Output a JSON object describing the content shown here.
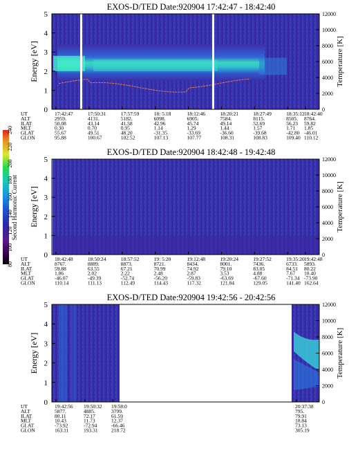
{
  "chart_data": [
    {
      "type": "heatmap",
      "title": "EXOS-D/TED   Date:920904   17:42:47 - 18:42:40",
      "ylabel": "Energy [eV]",
      "ylabel_right": "Temperature [K]",
      "yticks": [
        "0",
        "1",
        "2",
        "3",
        "4",
        "5"
      ],
      "yticks_right": [
        "0",
        "2000",
        "4000",
        "6000",
        "8000",
        "10000",
        "12000"
      ],
      "ylim": [
        0,
        5
      ],
      "ylim_right": [
        0,
        12000
      ],
      "row_labels": [
        "UT",
        "ALT",
        "ILAT",
        "MLT",
        "GLAT",
        "GLON"
      ],
      "columns": [
        [
          "17:42:47",
          "2959.",
          "50.08",
          "0.30",
          "55.67",
          "95.88"
        ],
        [
          "17:50:31",
          "4131.",
          "43.14",
          "0.70",
          "49.51",
          "100.67"
        ],
        [
          "17:57:59",
          "5182.",
          "41.58",
          "0.95",
          "48.20",
          "102.52"
        ],
        [
          "18: 5:18",
          "6098.",
          "42.96",
          "1.14",
          "-31.35",
          "107.13"
        ],
        [
          "18:12:46",
          "6905.",
          "45.74",
          "1.29",
          "-33.69",
          "107.77"
        ],
        [
          "18:20:21",
          "7584.",
          "49.14",
          "1.44",
          "-36.60",
          "108.31"
        ],
        [
          "18:27:49",
          "8115.",
          "52.69",
          "1.57",
          "-39.68",
          "108.83"
        ],
        [
          "18:35:12",
          "8505.",
          "56.23",
          "1.71",
          "-42.80",
          "109.40"
        ],
        [
          "18:42:40",
          "8764.",
          "59.82",
          "1.85",
          "-46.01",
          "110.12"
        ]
      ]
    },
    {
      "type": "heatmap",
      "title": "EXOS-D/TED   Date:920904   18:42:48 - 19:42:48",
      "ylabel": "Energy [eV]",
      "ylabel_right": "Temperature [K]",
      "yticks": [
        "0",
        "1",
        "2",
        "3",
        "4",
        "5"
      ],
      "yticks_right": [
        "0",
        "2000",
        "4000",
        "6000",
        "8000",
        "10000",
        "12000"
      ],
      "ylim": [
        0,
        5
      ],
      "ylim_right": [
        0,
        12000
      ],
      "row_labels": [
        "UT",
        "ALT",
        "ILAT",
        "MLT",
        "GLAT",
        "GLON"
      ],
      "columns": [
        [
          "18:42:48",
          "8767.",
          "59.88",
          "1.86",
          "-46.07",
          "110.14"
        ],
        [
          "18:50:24",
          "8889.",
          "63.55",
          "2.02",
          "-49.39",
          "111.13"
        ],
        [
          "18:57:52",
          "8873.",
          "67.21",
          "2.22",
          "-52.74",
          "112.49"
        ],
        [
          "19: 5:20",
          "8721.",
          "70.99",
          "2.48",
          "-56.20",
          "114.43"
        ],
        [
          "19:12:48",
          "8434.",
          "74.92",
          "2.87",
          "-59.83",
          "117.32"
        ],
        [
          "19:20:24",
          "8001.",
          "79.10",
          "3.53",
          "-63.69",
          "121.84"
        ],
        [
          "19:27:52",
          "7436.",
          "83.05",
          "4.88",
          "-67.60",
          "129.05"
        ],
        [
          "19:35:20",
          "6733.",
          "84.51",
          "7.67",
          "-71.34",
          "141.40"
        ],
        [
          "19:42:48",
          "5893.",
          "80.22",
          "10.40",
          "-73.90",
          "162.64"
        ]
      ]
    },
    {
      "type": "heatmap",
      "title": "EXOS-D/TED   Date:920904   19:42:56 - 20:42:56",
      "ylabel": "Energy [eV]",
      "ylabel_right": "Temperature [K]",
      "yticks": [
        "0",
        "1",
        "2",
        "3",
        "4",
        "5"
      ],
      "yticks_right": [
        "0",
        "2000",
        "4000",
        "6000",
        "8000",
        "10000",
        "12000"
      ],
      "ylim": [
        0,
        5
      ],
      "ylim_right": [
        0,
        12000
      ],
      "row_labels": [
        "UT",
        "ALT",
        "ILAT",
        "MLT",
        "GLAT",
        "GLON"
      ],
      "columns": [
        [
          "19:42:56",
          "5877.",
          "80.11",
          "10.43",
          "-73.92",
          "163.11"
        ],
        [
          "19:50:32",
          "4885.",
          "72.17",
          "11.73",
          "-72.94",
          "193.31"
        ],
        [
          "19:58:0",
          "3799.",
          "61.59",
          "12.37",
          "-66.46",
          "218.72"
        ],
        [
          "20:37:38",
          "795.",
          "79.91",
          "18.84",
          "73.13",
          "305.19"
        ]
      ]
    }
  ],
  "colorbar": {
    "label": "Second Harmonic Current",
    "ticks": [
      "80",
      "100",
      "120",
      "140",
      "160",
      "180",
      "200",
      "220",
      "240"
    ],
    "colors": [
      "#000000",
      "#3a0050",
      "#5a1a8a",
      "#2a2aa8",
      "#1e5ad8",
      "#1c9ae0",
      "#18c8b8",
      "#28d850",
      "#d8e830",
      "#e89020",
      "#e02020"
    ]
  },
  "field_colors": {
    "background": "#3a2aa0",
    "mid": "#3050c8",
    "band": "#30d0b0",
    "band_core": "#50f0c0",
    "gap": "#ffffff"
  }
}
